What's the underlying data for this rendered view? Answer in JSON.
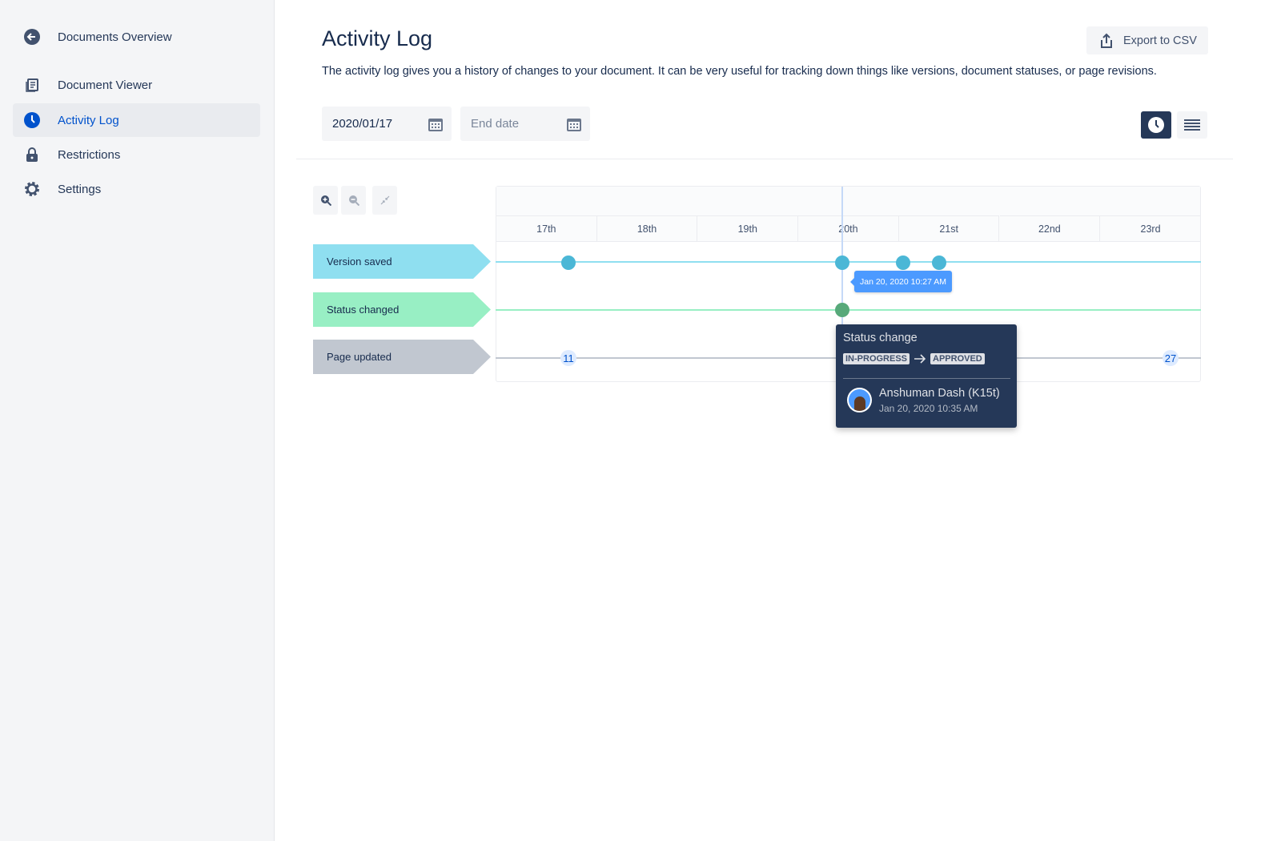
{
  "sidebar": {
    "items": [
      {
        "label": "Documents Overview",
        "icon": "arrow-left-circle-icon"
      },
      {
        "label": "Document Viewer",
        "icon": "document-icon"
      },
      {
        "label": "Activity Log",
        "icon": "clock-icon",
        "active": true
      },
      {
        "label": "Restrictions",
        "icon": "lock-icon"
      },
      {
        "label": "Settings",
        "icon": "gear-icon"
      }
    ]
  },
  "header": {
    "title": "Activity Log",
    "description": "The activity log gives you a history of changes to your document. It can be very useful for tracking down things like versions, document statuses, or page revisions.",
    "export_label": "Export to CSV"
  },
  "filters": {
    "start_date": "2020/01/17",
    "end_date_placeholder": "End date"
  },
  "view": {
    "active": "timeline"
  },
  "timeline": {
    "days": [
      "17th",
      "18th",
      "19th",
      "20th",
      "21st",
      "22nd",
      "23rd"
    ],
    "lanes": [
      {
        "label": "Version saved",
        "color": "#8fdff0"
      },
      {
        "label": "Status changed",
        "color": "#98efc4"
      },
      {
        "label": "Page updated",
        "color": "#c1c7d0"
      }
    ],
    "page_badges": [
      "11",
      "27"
    ],
    "hover_tooltip": "Jan 20, 2020 10:27 AM",
    "popover": {
      "title": "Status change",
      "from": "IN-PROGRESS",
      "to": "APPROVED",
      "user": "Anshuman Dash (K15t)",
      "time": "Jan 20, 2020 10:35 AM"
    }
  }
}
